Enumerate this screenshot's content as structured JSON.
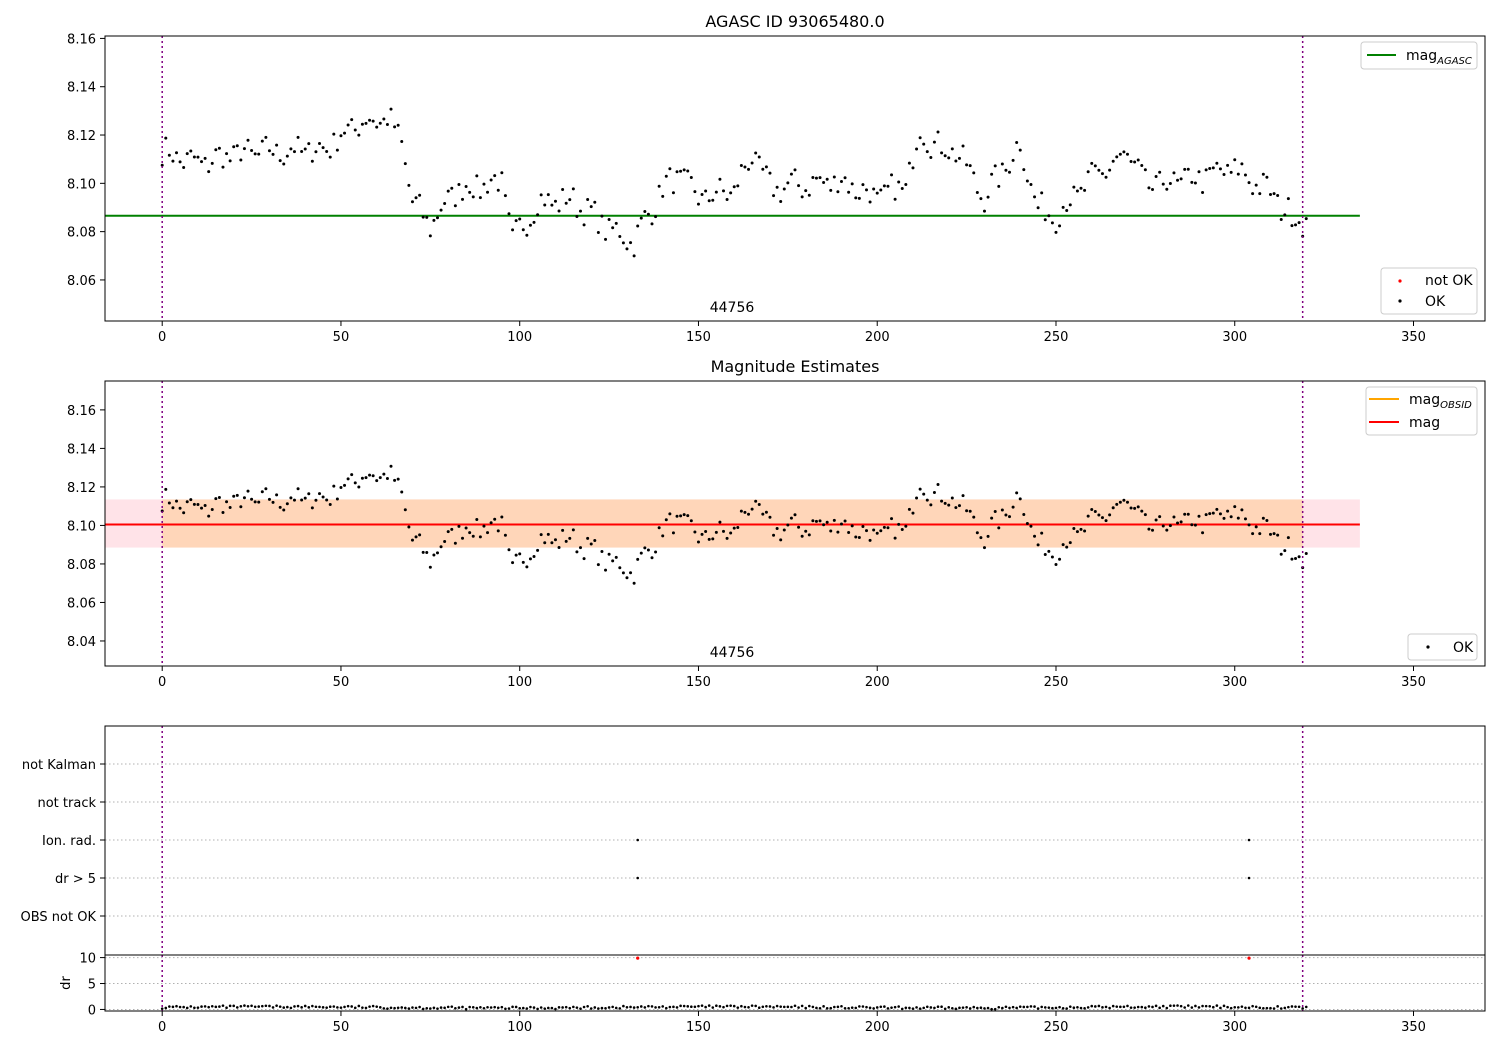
{
  "panel1": {
    "title": "AGASC ID 93065480.0",
    "obsid_label": "44756",
    "yticks": [
      "8.06",
      "8.08",
      "8.10",
      "8.12",
      "8.14",
      "8.16"
    ],
    "legend_line_label": "mag",
    "legend_line_sub": "AGASC",
    "legend_points": [
      "not OK",
      "OK"
    ]
  },
  "panel2": {
    "title": "Magnitude Estimates",
    "obsid_label": "44756",
    "yticks": [
      "8.04",
      "8.06",
      "8.08",
      "8.10",
      "8.12",
      "8.14",
      "8.16"
    ],
    "legend_obsid_label": "mag",
    "legend_obsid_sub": "OBSID",
    "legend_mag_label": "mag",
    "legend_points": [
      "OK"
    ]
  },
  "panel3": {
    "flag_labels": [
      "not Kalman",
      "not track",
      "Ion. rad.",
      "dr > 5",
      "OBS not OK"
    ]
  },
  "panel4": {
    "ylabel": "dr",
    "yticks": [
      "0",
      "5",
      "10"
    ]
  },
  "xticks": [
    "0",
    "50",
    "100",
    "150",
    "200",
    "250",
    "300",
    "350"
  ],
  "colors": {
    "agasc_line": "#008000",
    "mag_line": "#ff0000",
    "obsid_line": "#ffa500",
    "ok_points": "#000000",
    "not_ok_points": "#ff0000",
    "obs_boundary": "#800080"
  },
  "chart_data": [
    {
      "type": "scatter",
      "title": "AGASC ID 93065480.0",
      "xlim": [
        -16,
        370
      ],
      "ylim": [
        8.043,
        8.161
      ],
      "x_range": [
        0,
        320
      ],
      "series": [
        {
          "name": "OK",
          "y_profile_x": [
            0,
            10,
            20,
            30,
            45,
            55,
            63,
            67,
            70,
            75,
            82,
            95,
            98,
            105,
            115,
            125,
            132,
            140,
            145,
            150,
            160,
            165,
            170,
            190,
            200,
            208,
            212,
            218,
            222,
            230,
            240,
            245,
            250,
            262,
            270,
            275,
            290,
            300,
            310,
            316,
            320
          ],
          "y_profile_y": [
            8.113,
            8.108,
            8.112,
            8.113,
            8.114,
            8.125,
            8.127,
            8.117,
            8.092,
            8.083,
            8.097,
            8.101,
            8.076,
            8.092,
            8.093,
            8.081,
            8.076,
            8.098,
            8.103,
            8.094,
            8.097,
            8.112,
            8.098,
            8.101,
            8.094,
            8.099,
            8.122,
            8.114,
            8.114,
            8.094,
            8.116,
            8.089,
            8.087,
            8.104,
            8.112,
            8.099,
            8.102,
            8.106,
            8.096,
            8.086,
            8.085
          ]
        },
        {
          "name": "not OK",
          "values": []
        }
      ],
      "lines": [
        {
          "name": "mag_AGASC",
          "y": 8.0866,
          "x_range": [
            -16,
            335
          ]
        }
      ],
      "obs_boundaries": [
        0,
        319
      ]
    },
    {
      "type": "scatter",
      "title": "Magnitude Estimates",
      "xlim": [
        -16,
        370
      ],
      "ylim": [
        8.027,
        8.175
      ],
      "x_range": [
        0,
        320
      ],
      "series": [
        {
          "name": "OK",
          "note_same_points_as_panel1": true
        }
      ],
      "lines": [
        {
          "name": "mag",
          "y": 8.1005,
          "band": [
            8.0885,
            8.1135
          ],
          "x_range": [
            -16,
            335
          ]
        },
        {
          "name": "mag_OBSID",
          "y": 8.1005,
          "band": [
            8.0885,
            8.1135
          ],
          "x_range": [
            0,
            319
          ]
        }
      ],
      "obs_boundaries": [
        0,
        319
      ]
    },
    {
      "type": "scatter",
      "categories": [
        "not Kalman",
        "not track",
        "Ion. rad.",
        "dr > 5",
        "OBS not OK"
      ],
      "flag_points": [
        {
          "category": "Ion. rad.",
          "x": [
            133,
            304
          ]
        },
        {
          "category": "dr > 5",
          "x": [
            133,
            304
          ]
        }
      ],
      "xlim": [
        -16,
        370
      ]
    },
    {
      "type": "scatter",
      "ylabel": "dr",
      "ylim": [
        -0.3,
        10.5
      ],
      "xlim": [
        -16,
        370
      ],
      "typical_dr": 0.4,
      "outliers": [
        {
          "x": 133,
          "y": 9.9
        },
        {
          "x": 304,
          "y": 9.9
        }
      ]
    }
  ]
}
